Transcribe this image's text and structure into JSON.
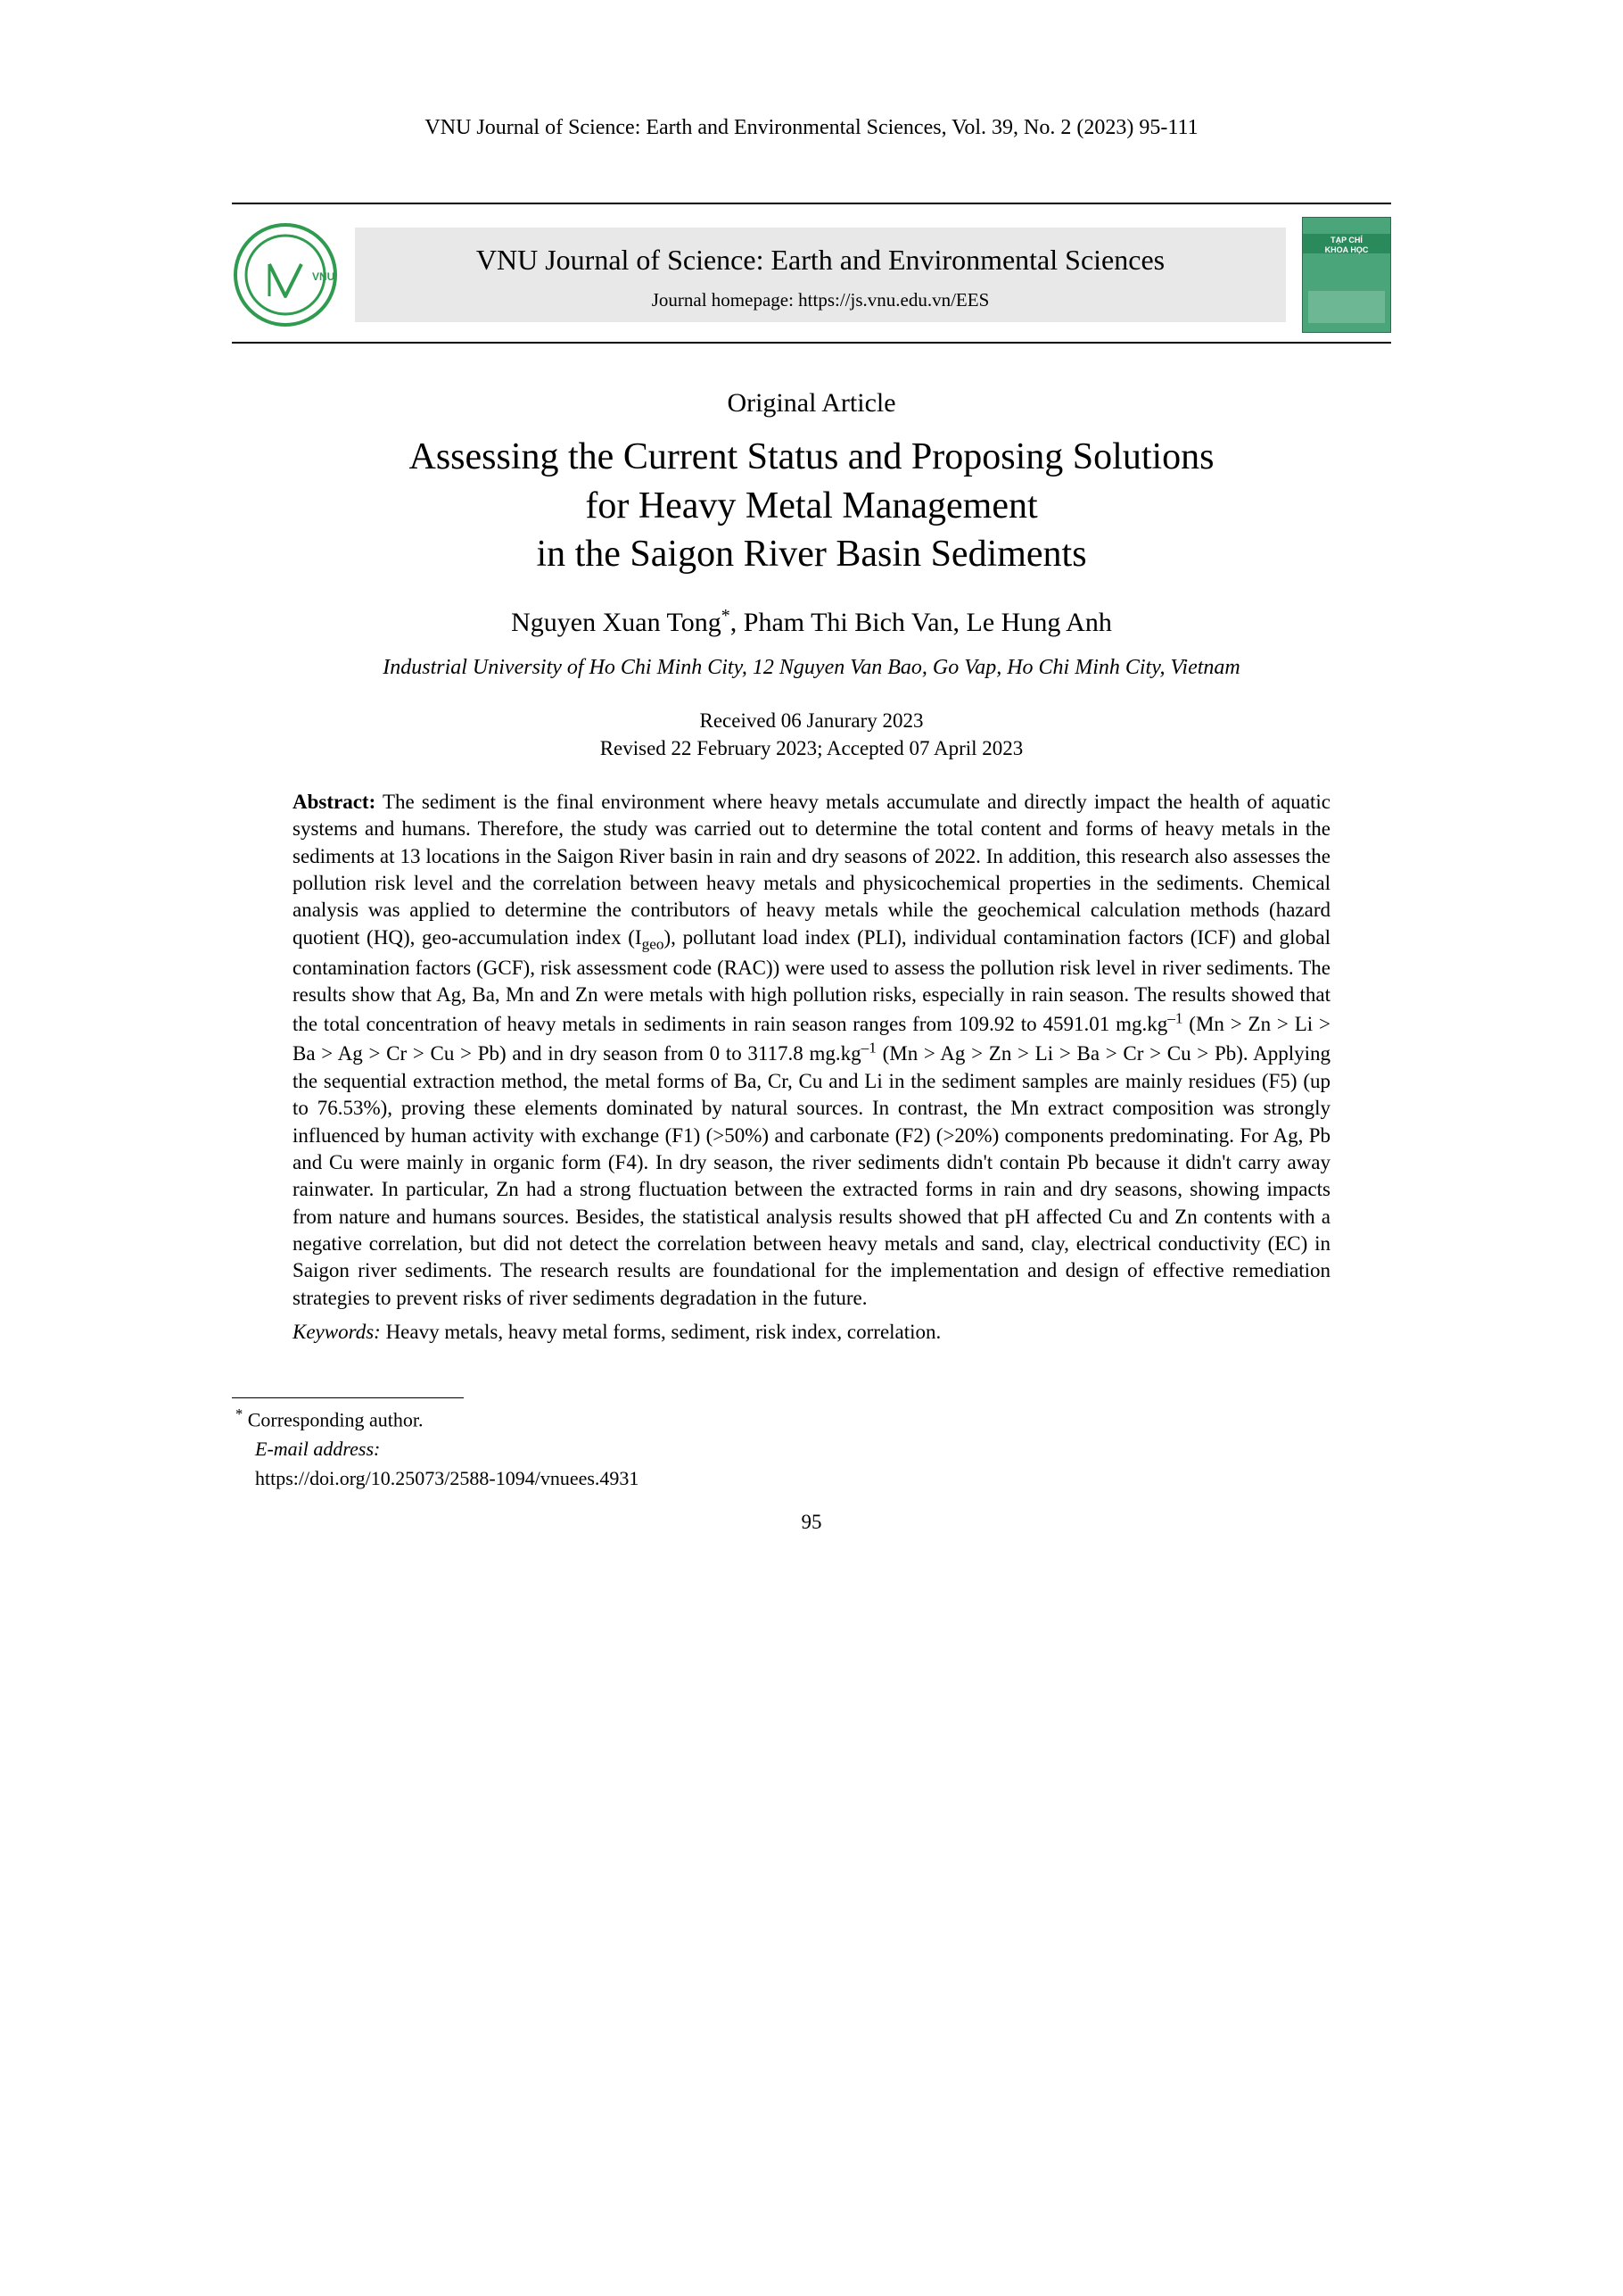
{
  "header": {
    "running": "VNU Journal of Science: Earth and Environmental Sciences, Vol. 39, No. 2 (2023) 95-111"
  },
  "banner": {
    "logo_text": "VNU",
    "logo_color": "#2e9b4f",
    "title": "VNU Journal of Science: Earth and Environmental Sciences",
    "homepage": "Journal homepage: https://js.vnu.edu.vn/EES",
    "cover_label_top": "TẠP CHÍ",
    "cover_label_main": "KHOA HỌC",
    "cover_bg": "#4aa67a"
  },
  "article": {
    "type": "Original Article",
    "title_html": "Assessing the Current Status and Proposing Solutions<br>for Heavy Metal Management<br>in the Saigon River Basin Sediments",
    "authors_html": "Nguyen Xuan Tong<sup>*</sup>, Pham Thi Bich Van, Le Hung Anh",
    "affiliation": "Industrial University of Ho Chi Minh City, 12 Nguyen Van Bao, Go Vap, Ho Chi Minh City, Vietnam",
    "received": "Received 06 Janurary 2023",
    "revised_accepted": "Revised 22 February 2023; Accepted 07 April 2023"
  },
  "abstract": {
    "label": "Abstract:",
    "body_html": "The sediment is the final environment where heavy metals accumulate and directly impact the health of aquatic systems and humans. Therefore, the study was carried out to determine the total content and forms of heavy metals in the sediments at 13 locations in the Saigon River basin in rain and dry seasons of 2022. In addition, this research also assesses the pollution risk level and the correlation between heavy metals and physicochemical properties in the sediments. Chemical analysis was applied to determine the contributors of heavy metals while the geochemical calculation methods (hazard quotient (HQ), geo-accumulation index (I<sub>geo</sub>), pollutant load index (PLI), individual contamination factors (ICF) and global contamination factors (GCF), risk assessment code (RAC)) were used to assess the pollution risk level in river sediments. The results show that Ag, Ba, Mn and Zn were metals with high pollution risks, especially in rain season. The results showed that the total concentration of heavy metals in sediments in rain season ranges from 109.92 to 4591.01 mg.kg<sup>–1</sup> (Mn &gt; Zn &gt; Li &gt; Ba &gt; Ag &gt; Cr &gt; Cu &gt; Pb) and in dry season from 0 to 3117.8 mg.kg<sup>–1</sup> (Mn &gt; Ag &gt; Zn &gt; Li &gt; Ba &gt; Cr &gt; Cu &gt; Pb). Applying the sequential extraction method, the metal forms of Ba, Cr, Cu and Li in the sediment samples are mainly residues (F5) (up to 76.53%), proving these elements dominated by natural sources. In contrast, the Mn extract composition was strongly influenced by human activity with exchange (F1) (&gt;50%) and carbonate (F2) (&gt;20%) components predominating. For Ag, Pb and Cu were mainly in organic form (F4). In dry season, the river sediments didn't contain Pb because it didn't carry away rainwater. In particular, Zn had a strong fluctuation between the extracted forms in rain and dry seasons, showing impacts from nature and humans sources. Besides, the statistical analysis results showed that pH affected Cu and Zn contents with a negative correlation, but did not detect the correlation between heavy metals and sand, clay, electrical conductivity (EC) in Saigon river sediments. The research results are foundational for the implementation and design of effective remediation strategies to prevent risks of river sediments degradation in the future."
  },
  "keywords": {
    "label": "Keywords:",
    "text": "Heavy metals, heavy metal forms, sediment, risk index, correlation."
  },
  "footnotes": {
    "corresponding": "Corresponding author.",
    "email_label": "E-mail address:",
    "doi": "https://doi.org/10.25073/2588-1094/vnuees.4931"
  },
  "page": {
    "number": "95"
  }
}
